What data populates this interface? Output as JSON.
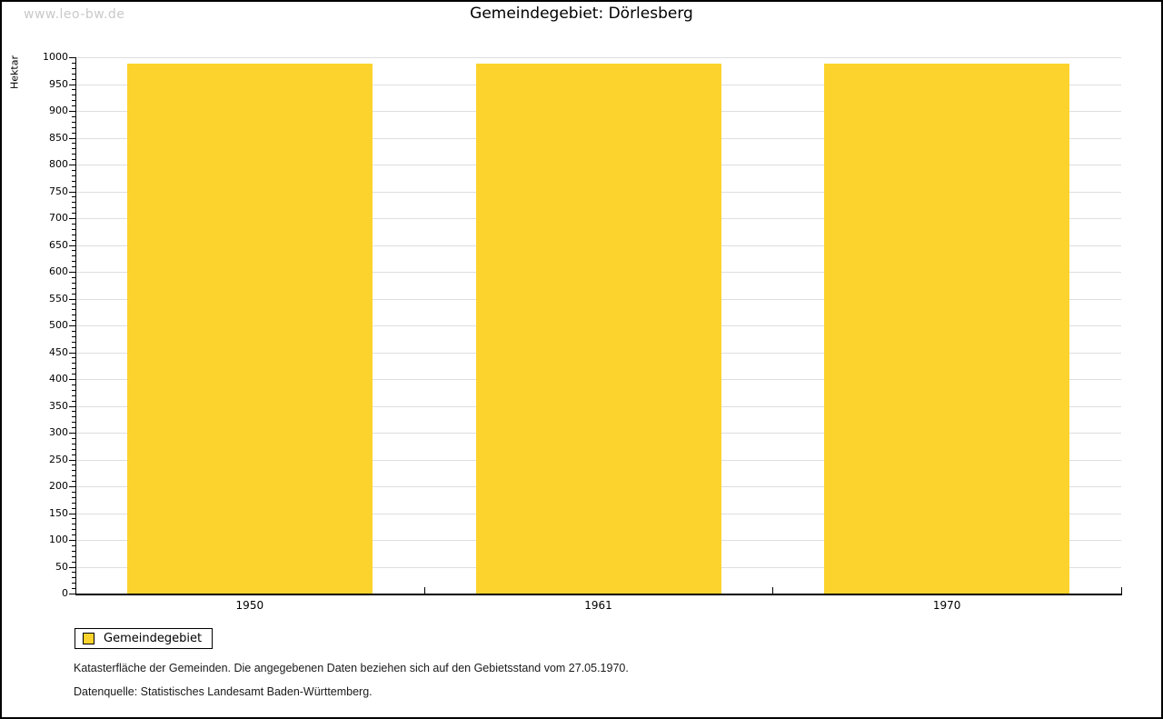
{
  "watermark": "www.leo-bw.de",
  "chart_data": {
    "type": "bar",
    "title": "Gemeindegebiet: Dörlesberg",
    "ylabel": "Hektar",
    "xlabel": "",
    "categories": [
      "1950",
      "1961",
      "1970"
    ],
    "series": [
      {
        "name": "Gemeindegebiet",
        "values": [
          988,
          988,
          988
        ]
      }
    ],
    "ylim": [
      0,
      1000
    ],
    "y_major_step": 50,
    "y_minor_step": 10,
    "grid": true,
    "legend_position": "bottom-left",
    "bar_color": "#FCD32D"
  },
  "legend": {
    "label": "Gemeindegebiet",
    "swatch_color": "#FCD32D"
  },
  "footer": {
    "note1": "Katasterfläche der Gemeinden. Die angegebenen Daten beziehen sich auf den Gebietsstand vom 27.05.1970.",
    "note2": "Datenquelle: Statistisches Landesamt Baden-Württemberg."
  }
}
